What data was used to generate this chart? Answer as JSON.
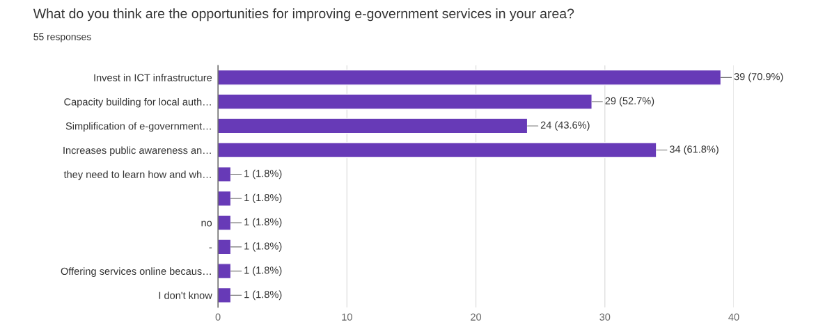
{
  "chart_data": {
    "type": "bar",
    "orientation": "horizontal",
    "title": "What do you think are the opportunities for improving e-government services in your area?",
    "subtitle": "55 responses",
    "categories": [
      "Invest in ICT infrastructure",
      "Capacity building for local auth…",
      "Simplification of e-government…",
      "Increases public awareness an…",
      "they need to learn how and wh…",
      null,
      "no",
      "-",
      "Offering services online becaus…",
      "I don't know"
    ],
    "values": [
      39,
      29,
      24,
      34,
      1,
      1,
      1,
      1,
      1,
      1
    ],
    "value_labels": [
      "39 (70.9%)",
      "29 (52.7%)",
      "24 (43.6%)",
      "34 (61.8%)",
      "1 (1.8%)",
      "1 (1.8%)",
      "1 (1.8%)",
      "1 (1.8%)",
      "1 (1.8%)",
      "1 (1.8%)"
    ],
    "color": "#673ab7",
    "xlim": [
      0,
      40
    ],
    "xticks": [
      0,
      10,
      20,
      30,
      40
    ],
    "grid": "x",
    "legend": false
  }
}
